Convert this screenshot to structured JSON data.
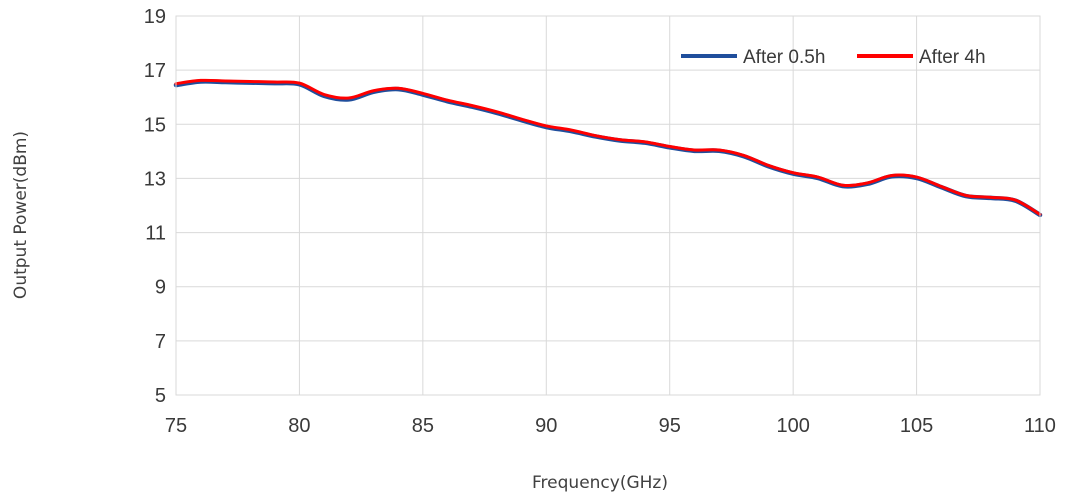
{
  "chart_data": {
    "type": "line",
    "title": "",
    "xlabel": "Frequency(GHz)",
    "ylabel": "Output Power(dBm)",
    "xlim": [
      75,
      110
    ],
    "ylim": [
      5,
      19
    ],
    "xticks": [
      75,
      80,
      85,
      90,
      95,
      100,
      105,
      110
    ],
    "yticks": [
      5,
      7,
      9,
      11,
      13,
      15,
      17,
      19
    ],
    "xtick_labels": [
      "75",
      "80",
      "85",
      "90",
      "95",
      "100",
      "105",
      "110"
    ],
    "ytick_labels": [
      "5",
      "7",
      "9",
      "11",
      "13",
      "15",
      "17",
      "19"
    ],
    "grid": true,
    "legend_position": "top-right",
    "x": [
      75,
      76,
      77,
      78,
      79,
      80,
      81,
      82,
      83,
      84,
      85,
      86,
      87,
      88,
      89,
      90,
      91,
      92,
      93,
      94,
      95,
      96,
      97,
      98,
      99,
      100,
      101,
      102,
      103,
      104,
      105,
      106,
      107,
      108,
      109,
      110
    ],
    "series": [
      {
        "name": "After 0.5h",
        "color": "#1f4e9c",
        "values": [
          16.45,
          16.58,
          16.56,
          16.54,
          16.52,
          16.48,
          16.05,
          15.92,
          16.2,
          16.3,
          16.1,
          15.85,
          15.65,
          15.42,
          15.15,
          14.9,
          14.75,
          14.55,
          14.4,
          14.32,
          14.15,
          14.02,
          14.02,
          13.82,
          13.45,
          13.18,
          13.02,
          12.72,
          12.8,
          13.08,
          13.02,
          12.68,
          12.35,
          12.28,
          12.18,
          11.65
        ]
      },
      {
        "name": "After 4h",
        "color": "#ff0000",
        "values": [
          16.5,
          16.62,
          16.6,
          16.58,
          16.56,
          16.52,
          16.1,
          15.97,
          16.24,
          16.33,
          16.14,
          15.89,
          15.69,
          15.46,
          15.19,
          14.94,
          14.79,
          14.58,
          14.43,
          14.35,
          14.18,
          14.05,
          14.05,
          13.85,
          13.48,
          13.21,
          13.05,
          12.75,
          12.83,
          13.11,
          13.05,
          12.7,
          12.37,
          12.3,
          12.2,
          11.67
        ]
      }
    ]
  }
}
